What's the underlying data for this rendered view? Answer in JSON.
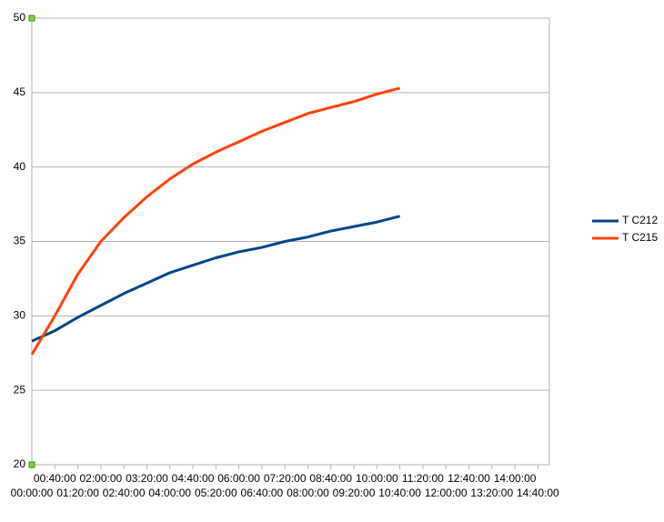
{
  "chart_data": {
    "type": "line",
    "x": [
      0,
      40,
      80,
      120,
      160,
      200,
      240,
      280,
      320,
      360,
      400,
      440,
      480,
      520,
      560,
      600,
      640
    ],
    "series": [
      {
        "name": "T C212",
        "color": "#004586",
        "values": [
          28.3,
          29.0,
          29.9,
          30.7,
          31.5,
          32.2,
          32.9,
          33.4,
          33.9,
          34.3,
          34.6,
          35.0,
          35.3,
          35.7,
          36.0,
          36.3,
          36.7
        ]
      },
      {
        "name": "T C215",
        "color": "#ff420e",
        "values": [
          27.4,
          30.0,
          32.8,
          35.0,
          36.6,
          38.0,
          39.2,
          40.2,
          41.0,
          41.7,
          42.4,
          43.0,
          43.6,
          44.0,
          44.4,
          44.9,
          45.3
        ]
      }
    ],
    "xlim": [
      0,
      900
    ],
    "xticks": [
      {
        "value": 0,
        "label": "00:00:00"
      },
      {
        "value": 40,
        "label": "00:40:00"
      },
      {
        "value": 80,
        "label": "01:20:00"
      },
      {
        "value": 120,
        "label": "02:00:00"
      },
      {
        "value": 160,
        "label": "02:40:00"
      },
      {
        "value": 200,
        "label": "03:20:00"
      },
      {
        "value": 240,
        "label": "04:00:00"
      },
      {
        "value": 280,
        "label": "04:40:00"
      },
      {
        "value": 320,
        "label": "05:20:00"
      },
      {
        "value": 360,
        "label": "06:00:00"
      },
      {
        "value": 400,
        "label": "06:40:00"
      },
      {
        "value": 440,
        "label": "07:20:00"
      },
      {
        "value": 480,
        "label": "08:00:00"
      },
      {
        "value": 520,
        "label": "08:40:00"
      },
      {
        "value": 560,
        "label": "09:20:00"
      },
      {
        "value": 600,
        "label": "10:00:00"
      },
      {
        "value": 640,
        "label": "10:40:00"
      },
      {
        "value": 680,
        "label": "11:20:00"
      },
      {
        "value": 720,
        "label": "12:00:00"
      },
      {
        "value": 760,
        "label": "12:40:00"
      },
      {
        "value": 800,
        "label": "13:20:00"
      },
      {
        "value": 840,
        "label": "14:00:00"
      },
      {
        "value": 880,
        "label": "14:40:00"
      }
    ],
    "ylim": [
      20,
      50
    ],
    "yticks": [
      20,
      25,
      30,
      35,
      40,
      45,
      50
    ],
    "grid": true,
    "legend": "right"
  }
}
